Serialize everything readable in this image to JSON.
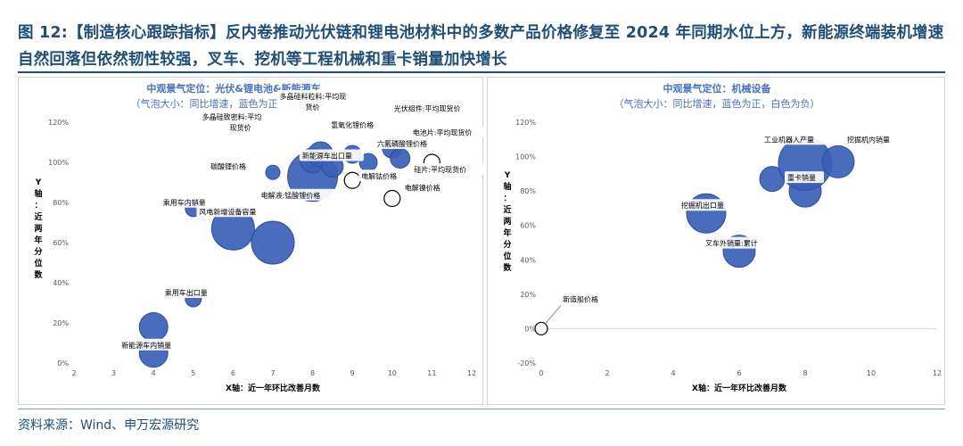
{
  "title": "图 12:【制造核心跟踪指标】反内卷推动光伏链和锂电池材料中的多数产品价格修复至 2024 年同期水位上方，新能源终端装机增速自然回落但依然韧性较强，叉车、挖机等工程机械和重卡销量加快增长",
  "source": "资料来源：Wind、申万宏源研究",
  "colors": {
    "accent": "#1f4e79",
    "bubble": "#3a5fb7",
    "bubble_edge": "#2f4f9e",
    "neg_fill": "#ffffff",
    "neg_edge": "#000000",
    "title_blue": "#4472c4"
  },
  "chart_data": [
    {
      "type": "bubble",
      "title": "中观景气定位：光伏&锂电池&新能源车",
      "subtitle": "（气泡大小：同比增速，蓝色为正，白色为负）",
      "xlabel": "X轴：近一年环比改善月数",
      "ylabel": "Y轴：近两年分位数",
      "xlim": [
        2,
        12
      ],
      "xticks": [
        "2",
        "3",
        "4",
        "5",
        "6",
        "7",
        "8",
        "9",
        "10",
        "11",
        "12"
      ],
      "ylim": [
        0,
        120
      ],
      "yticks": [
        "0%",
        "20%",
        "40%",
        "60%",
        "80%",
        "100%",
        "120%"
      ],
      "points": [
        {
          "label": "新能源车内销量",
          "x": 4,
          "y": 5,
          "r": 16,
          "sign": "pos"
        },
        {
          "label": "",
          "x": 4,
          "y": 18,
          "r": 16,
          "sign": "pos"
        },
        {
          "label": "乘用车出口量",
          "x": 5,
          "y": 32,
          "r": 9,
          "sign": "pos"
        },
        {
          "label": "乘用车内销量",
          "x": 5,
          "y": 77,
          "r": 9,
          "sign": "pos"
        },
        {
          "label": "风电新增设备容量",
          "x": 6,
          "y": 67,
          "r": 24,
          "sign": "pos"
        },
        {
          "label": "",
          "x": 7,
          "y": 60,
          "r": 24,
          "sign": "pos"
        },
        {
          "label": "碳酸锂价格",
          "x": 7,
          "y": 95,
          "r": 8,
          "sign": "pos"
        },
        {
          "label": "电解液:锰酸锂价格",
          "x": 8,
          "y": 93,
          "r": 28,
          "sign": "pos"
        },
        {
          "label": "多晶硅致密料:平均现货价",
          "x": 8,
          "y": 101,
          "r": 14,
          "sign": "pos"
        },
        {
          "label": "多晶硅料粒料:平均现货价",
          "x": 8.2,
          "y": 104,
          "r": 14,
          "sign": "pos"
        },
        {
          "label": "新能源车出口量",
          "x": 8.5,
          "y": 98,
          "r": 12,
          "sign": "pos"
        },
        {
          "label": "氢氧化锂价格",
          "x": 9,
          "y": 104,
          "r": 10,
          "sign": "pos"
        },
        {
          "label": "六氟磷酸锂价格",
          "x": 9.4,
          "y": 100,
          "r": 10,
          "sign": "pos"
        },
        {
          "label": "光伏组件:平均现货价",
          "x": 10,
          "y": 107,
          "r": 11,
          "sign": "pos"
        },
        {
          "label": "电池片:平均现货价",
          "x": 10.2,
          "y": 102,
          "r": 11,
          "sign": "pos"
        },
        {
          "label": "电解钴价格",
          "x": 9,
          "y": 91,
          "r": 9,
          "sign": "neg"
        },
        {
          "label": "硅片:平均现货价",
          "x": 11,
          "y": 100,
          "r": 9,
          "sign": "neg"
        },
        {
          "label": "电解镍价格",
          "x": 10,
          "y": 82,
          "r": 9,
          "sign": "neg"
        }
      ]
    },
    {
      "type": "bubble",
      "title": "中观景气定位：机械设备",
      "subtitle": "（气泡大小：同比增速，蓝色为正，白色为负）",
      "xlabel": "X轴：近一年环比改善月数",
      "ylabel": "Y轴：近两年分位数",
      "xlim": [
        0,
        12
      ],
      "xticks": [
        "0",
        "2",
        "4",
        "6",
        "8",
        "10",
        "12"
      ],
      "ylim": [
        -20,
        120
      ],
      "yticks": [
        "-20%",
        "0%",
        "20%",
        "40%",
        "60%",
        "80%",
        "100%",
        "120%"
      ],
      "points": [
        {
          "label": "新造船价格",
          "x": 0,
          "y": 0,
          "r": 7,
          "sign": "neg"
        },
        {
          "label": "叉车外销量:累计",
          "x": 6,
          "y": 45,
          "r": 18,
          "sign": "pos"
        },
        {
          "label": "挖掘机出口量",
          "x": 5,
          "y": 67,
          "r": 22,
          "sign": "pos"
        },
        {
          "label": "重卡销量",
          "x": 8,
          "y": 80,
          "r": 18,
          "sign": "pos"
        },
        {
          "label": "",
          "x": 7,
          "y": 87,
          "r": 14,
          "sign": "pos"
        },
        {
          "label": "工业机器人产量",
          "x": 8,
          "y": 96,
          "r": 30,
          "sign": "pos"
        },
        {
          "label": "挖掘机内销量",
          "x": 9,
          "y": 97,
          "r": 18,
          "sign": "pos"
        }
      ]
    }
  ]
}
